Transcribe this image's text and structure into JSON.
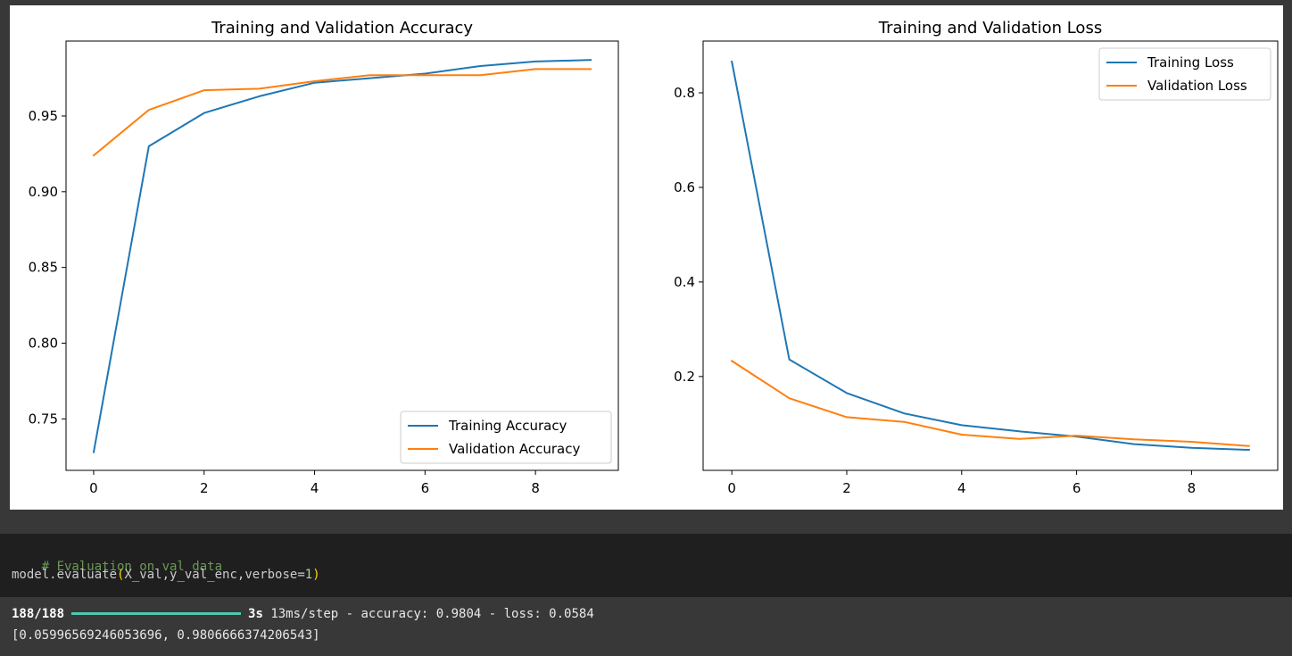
{
  "chart_data": [
    {
      "type": "line",
      "title": "Training and Validation Accuracy",
      "xlabel": "",
      "ylabel": "",
      "x": [
        0,
        1,
        2,
        3,
        4,
        5,
        6,
        7,
        8,
        9
      ],
      "xlim": [
        -0.5,
        9.5
      ],
      "ylim": [
        0.716,
        0.9995
      ],
      "xticks": [
        0,
        2,
        4,
        6,
        8
      ],
      "yticks": [
        0.75,
        0.8,
        0.85,
        0.9,
        0.95
      ],
      "ytick_labels": [
        "0.75",
        "0.80",
        "0.85",
        "0.90",
        "0.95"
      ],
      "series": [
        {
          "name": "Training Accuracy",
          "color": "#1f77b4",
          "values": [
            0.728,
            0.93,
            0.952,
            0.963,
            0.972,
            0.975,
            0.978,
            0.983,
            0.986,
            0.987
          ]
        },
        {
          "name": "Validation Accuracy",
          "color": "#ff7f0e",
          "values": [
            0.924,
            0.954,
            0.967,
            0.968,
            0.973,
            0.977,
            0.977,
            0.977,
            0.981,
            0.981
          ]
        }
      ],
      "legend": "lower right",
      "grid": false
    },
    {
      "type": "line",
      "title": "Training and Validation Loss",
      "xlabel": "",
      "ylabel": "",
      "x": [
        0,
        1,
        2,
        3,
        4,
        5,
        6,
        7,
        8,
        9
      ],
      "xlim": [
        -0.5,
        9.5
      ],
      "ylim": [
        0.0015,
        0.9095
      ],
      "xticks": [
        0,
        2,
        4,
        6,
        8
      ],
      "yticks": [
        0.2,
        0.4,
        0.6,
        0.8
      ],
      "ytick_labels": [
        "0.2",
        "0.4",
        "0.6",
        "0.8"
      ],
      "series": [
        {
          "name": "Training Loss",
          "color": "#1f77b4",
          "values": [
            0.866,
            0.236,
            0.165,
            0.122,
            0.097,
            0.084,
            0.073,
            0.057,
            0.049,
            0.045
          ]
        },
        {
          "name": "Validation Loss",
          "color": "#ff7f0e",
          "values": [
            0.233,
            0.154,
            0.114,
            0.104,
            0.077,
            0.068,
            0.075,
            0.067,
            0.062,
            0.053
          ]
        }
      ],
      "legend": "upper right",
      "grid": false
    }
  ],
  "code_cell": {
    "comment": "# Evaluation on val data",
    "call_prefix": "model.evaluate",
    "open_paren": "(",
    "args": "X_val,y_val_enc,verbose=",
    "arg_num": "1",
    "close_paren": ")"
  },
  "output": {
    "progress_count": "188/188",
    "progress_fraction": 1.0,
    "duration": "3s",
    "step_time": "13ms/step - accuracy: 0.9804 - loss: 0.0584",
    "result": "[0.05996569246053696, 0.9806666374206543]",
    "progress_color": "#4ec9b0"
  }
}
